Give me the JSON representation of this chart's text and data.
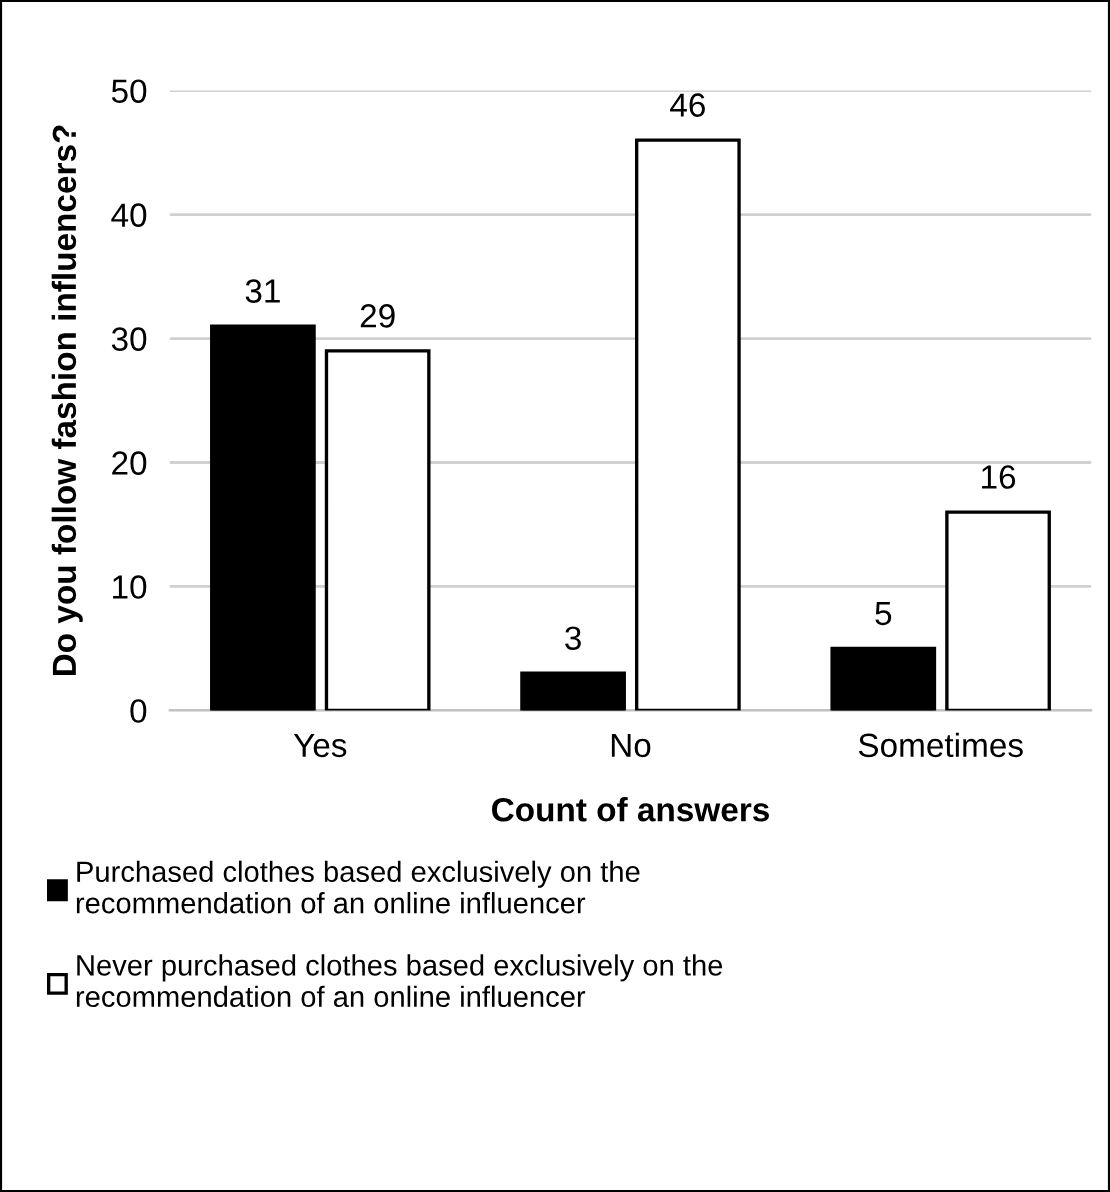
{
  "chart_data": {
    "type": "bar",
    "xlabel": "Count of answers",
    "ylabel": "Do you follow fashion influencers?",
    "categories": [
      "Yes",
      "No",
      "Sometimes"
    ],
    "series": [
      {
        "name": "Purchased clothes based exclusively on the\nrecommendation of an online influencer",
        "color": "#000000",
        "values": [
          31,
          3,
          5
        ]
      },
      {
        "name": "Never purchased clothes based exclusively on the\nrecommendation of an online influencer",
        "color": "#ffffff",
        "values": [
          29,
          46,
          16
        ]
      }
    ],
    "ylim": [
      0,
      50
    ],
    "yticks": [
      0,
      10,
      20,
      30,
      40,
      50
    ],
    "grid": "y",
    "legend": "bottom",
    "data_labels": true
  }
}
